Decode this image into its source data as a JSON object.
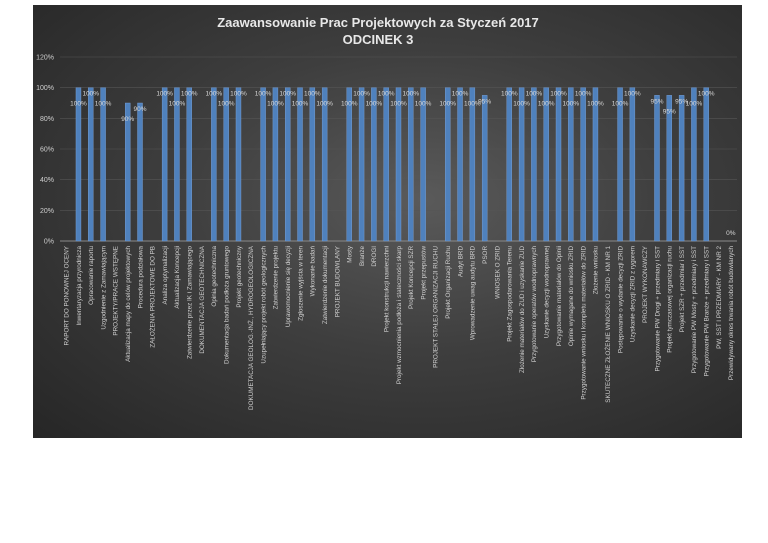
{
  "chart_data": {
    "type": "bar",
    "title": "Zaawansowanie Prac Projektowych za Styczeń 2017",
    "subtitle": "ODCINEK 3",
    "xlabel": "",
    "ylabel": "",
    "ylim": [
      0,
      120
    ],
    "yticks": [
      "0%",
      "20%",
      "40%",
      "60%",
      "80%",
      "100%",
      "120%"
    ],
    "grid": true,
    "bar_color": "#4f81bd",
    "categories": [
      "RAPORT DO PONOWNEJ OCENY",
      "Inwentaryzacja przyrodnicza",
      "Opracowanie raportu",
      "Uzgodnienie z Zamawiającym",
      "PROJEKTY/PRACE WSTĘPNE",
      "Aktualizacja mapy do celów projektowych",
      "Procedura podziałowa",
      "ZAŁOŻENIA PROJEKTOWE DO PB",
      "Analiza optymalizacji",
      "Aktualizacja Koncepcji",
      "Zatwierdzenie przez IK i Zamawiającego",
      "DOKUMENTACJA GEOTECHNICZNA",
      "Opinia geotechniczna",
      "Dokumentacja badań podłoża gruntowego",
      "Projekt geotechniczny",
      "DOKUMETACJA GEOLOG.-INŻ., HYDROGEOLOGICZNA",
      "Uzupełniający projekt robót geologicznych",
      "Zatwierdzenie projektu",
      "Uprawomocnienie się decyzji",
      "Zgłoszenie wyjścia w teren",
      "Wykonanie badań",
      "Zatwierdzenie dokumentacji",
      "PROJEKT BUDOWLANY",
      "Mosty",
      "Branże",
      "DROGI",
      "Projekt konstrukcji nawierzchni",
      "Projekt wzmocnienia podłoża i stateczności skarp",
      "Projekt Koncepcji SZR",
      "Projekt przepustów",
      "PROJEKT STAŁEJ ORGANIZACJI RUCHU",
      "Projekt Organizacji Ruchu",
      "Audyt BRD",
      "Wprowadzenie uwag audytu BRD",
      "PSOR",
      "WNIOSEK O ZRID",
      "Projekt Zagospodarowania Terenu",
      "Złożenie materiałów do ZUD i uzyskanie ZUD",
      "Przygotowanie operatów wodnoprawnych",
      "Uzyskanie decyzji wodnoprawnej",
      "Przygotowanie materiałów do Opinii",
      "Opinie wymagane do wniosku ZRID",
      "Przygotowanie wniosku i kompletu materiałów do ZRID",
      "Złożenie wniosku",
      "SKUTECZNE ZŁOŻENIE WNIOSKU O ZRID - KM NR 1",
      "Postępowanie o wydanie decyzji ZRID",
      "Uzyskanie decyzji ZRID z rygorem",
      "PROJEKT WYKONAWCZY",
      "Przygotowanie PW Drogi + przedmiary i SST",
      "Projekt tymczasowej organizacji ruchu",
      "Projekt SZR + przedmiar i SST",
      "Przygotowanie PW Mosty + przedmiary i SST",
      "Przygotowanie PW Branże + przedmiary i SST",
      "PW, SST I PRZEDMIARY - KM NR 2",
      "Przewidywany okres trwania robót budowlanych"
    ],
    "values": [
      null,
      100,
      100,
      100,
      null,
      90,
      90,
      null,
      100,
      100,
      100,
      null,
      100,
      100,
      100,
      null,
      100,
      100,
      100,
      100,
      100,
      100,
      null,
      100,
      100,
      100,
      100,
      100,
      100,
      100,
      null,
      100,
      100,
      100,
      95,
      null,
      100,
      100,
      100,
      100,
      100,
      100,
      100,
      100,
      null,
      100,
      100,
      null,
      95,
      95,
      95,
      100,
      100,
      null,
      0
    ]
  }
}
